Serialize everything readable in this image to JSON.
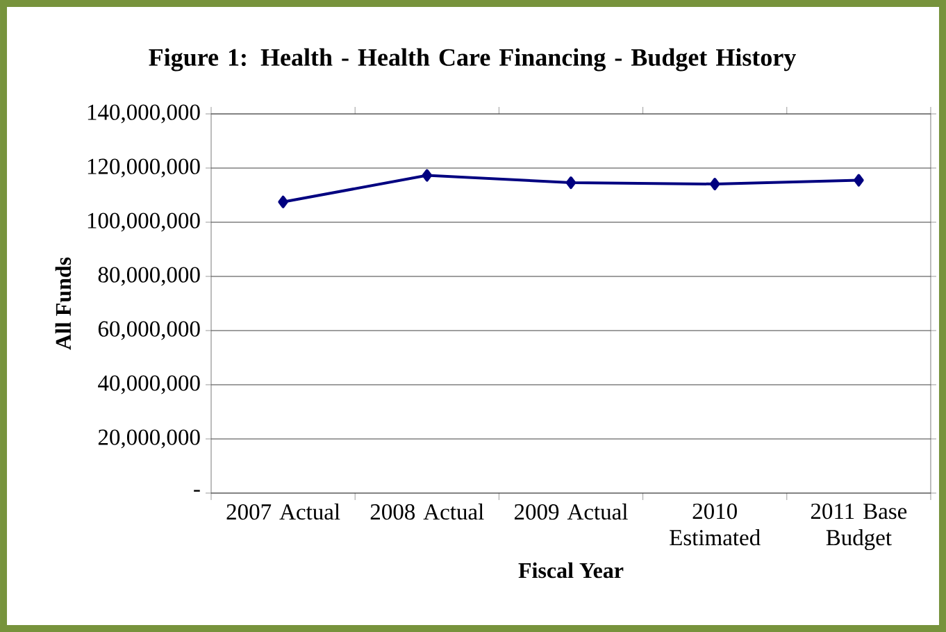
{
  "chart_data": {
    "type": "line",
    "title": "Figure 1: Health - Health Care Financing - Budget History",
    "xlabel": "Fiscal Year",
    "ylabel": "All Funds",
    "categories": [
      "2007 Actual",
      "2008 Actual",
      "2009 Actual",
      "2010 Estimated",
      "2011 Base Budget"
    ],
    "series": [
      {
        "color": "#000080",
        "values": [
          107500000,
          117300000,
          114600000,
          114100000,
          115500000
        ]
      }
    ],
    "ylim": [
      0,
      140000000
    ],
    "yticks": [
      {
        "value": 0,
        "label": "-"
      },
      {
        "value": 20000000,
        "label": "20,000,000"
      },
      {
        "value": 40000000,
        "label": "40,000,000"
      },
      {
        "value": 60000000,
        "label": "60,000,000"
      },
      {
        "value": 80000000,
        "label": "80,000,000"
      },
      {
        "value": 100000000,
        "label": "100,000,000"
      },
      {
        "value": 120000000,
        "label": "120,000,000"
      },
      {
        "value": 140000000,
        "label": "140,000,000"
      }
    ],
    "grid": "y",
    "marker": "diamond",
    "line_style": "solid"
  }
}
